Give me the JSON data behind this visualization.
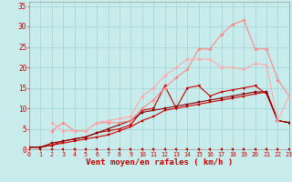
{
  "background_color": "#c8ecec",
  "grid_color": "#a8d8d8",
  "xlabel": "Vent moyen/en rafales ( km/h )",
  "xlim": [
    0,
    23
  ],
  "ylim": [
    0,
    36
  ],
  "xticks": [
    0,
    1,
    2,
    3,
    4,
    5,
    6,
    7,
    8,
    9,
    10,
    11,
    12,
    13,
    14,
    15,
    16,
    17,
    18,
    19,
    20,
    21,
    22,
    23
  ],
  "yticks": [
    0,
    5,
    10,
    15,
    20,
    25,
    30,
    35
  ],
  "lines": [
    {
      "x": [
        0,
        1,
        2,
        3,
        4,
        5,
        6,
        7,
        8,
        9,
        10,
        11,
        12,
        13,
        14,
        15,
        16,
        17,
        18,
        19,
        20,
        21,
        22,
        23
      ],
      "y": [
        0,
        0,
        0,
        0,
        0,
        0,
        0,
        0,
        0,
        0,
        0,
        0,
        0,
        0,
        0,
        0,
        0,
        0,
        0,
        0,
        0,
        0,
        0,
        0
      ],
      "color": "#cc0000",
      "marker": "s",
      "lw": 0.7,
      "ms": 1.5
    },
    {
      "x": [
        0,
        1,
        2,
        3,
        4,
        5,
        6,
        7,
        8,
        9,
        10,
        11,
        12,
        13,
        14,
        15,
        16,
        17,
        18,
        19,
        20,
        21,
        22,
        23
      ],
      "y": [
        0.5,
        0.5,
        1.0,
        1.5,
        2.0,
        2.5,
        3.0,
        3.5,
        4.5,
        5.5,
        7.0,
        8.0,
        9.5,
        10.0,
        10.5,
        11.0,
        11.5,
        12.0,
        12.5,
        13.0,
        13.5,
        14.0,
        7.0,
        6.5
      ],
      "color": "#cc0000",
      "marker": "s",
      "lw": 0.8,
      "ms": 1.5
    },
    {
      "x": [
        0,
        1,
        2,
        3,
        4,
        5,
        6,
        7,
        8,
        9,
        10,
        11,
        12,
        13,
        14,
        15,
        16,
        17,
        18,
        19,
        20,
        21,
        22,
        23
      ],
      "y": [
        0.5,
        0.5,
        1.0,
        2.0,
        2.5,
        3.0,
        4.0,
        4.5,
        5.0,
        6.0,
        9.5,
        10.0,
        15.5,
        10.0,
        15.0,
        15.5,
        13.0,
        14.0,
        14.5,
        15.0,
        15.5,
        13.5,
        7.0,
        6.5
      ],
      "color": "#cc0000",
      "marker": "v",
      "lw": 0.8,
      "ms": 2.0
    },
    {
      "x": [
        0,
        1,
        2,
        3,
        4,
        5,
        6,
        7,
        8,
        9,
        10,
        11,
        12,
        13,
        14,
        15,
        16,
        17,
        18,
        19,
        20,
        21,
        22,
        23
      ],
      "y": [
        0.5,
        0.5,
        1.5,
        2.0,
        2.5,
        3.0,
        4.0,
        5.0,
        6.0,
        7.0,
        9.0,
        9.5,
        10.0,
        10.5,
        11.0,
        11.5,
        12.0,
        12.5,
        13.0,
        13.5,
        14.0,
        14.0,
        7.0,
        6.5
      ],
      "color": "#880000",
      "marker": "s",
      "lw": 0.8,
      "ms": 1.8
    },
    {
      "x": [
        2,
        3,
        4,
        5,
        6,
        7,
        8,
        9,
        10,
        11,
        12,
        13,
        14,
        15,
        16,
        17,
        18,
        19,
        20,
        21,
        22,
        23
      ],
      "y": [
        4.5,
        6.5,
        4.5,
        4.5,
        6.5,
        6.5,
        6.5,
        7.0,
        10.0,
        12.0,
        15.0,
        17.5,
        19.5,
        24.5,
        24.5,
        28.0,
        30.5,
        31.5,
        24.5,
        24.5,
        17.0,
        13.0
      ],
      "color": "#ff8888",
      "marker": "D",
      "lw": 0.8,
      "ms": 1.8
    },
    {
      "x": [
        2,
        3,
        4,
        5,
        6,
        7,
        8,
        9,
        10,
        11,
        12,
        13,
        14,
        15,
        16,
        17,
        18,
        19,
        20,
        21,
        22,
        23
      ],
      "y": [
        6.5,
        4.5,
        4.5,
        4.5,
        6.5,
        7.0,
        7.5,
        8.0,
        13.0,
        15.0,
        18.0,
        20.0,
        22.0,
        22.0,
        22.0,
        20.0,
        20.0,
        19.5,
        21.0,
        20.5,
        7.0,
        13.0
      ],
      "color": "#ffaaaa",
      "marker": "D",
      "lw": 0.8,
      "ms": 1.8
    }
  ],
  "label_color": "#cc0000",
  "tick_color": "#cc0000",
  "xlabel_fontsize": 6.5,
  "tick_fontsize_x": 4.8,
  "tick_fontsize_y": 5.5
}
